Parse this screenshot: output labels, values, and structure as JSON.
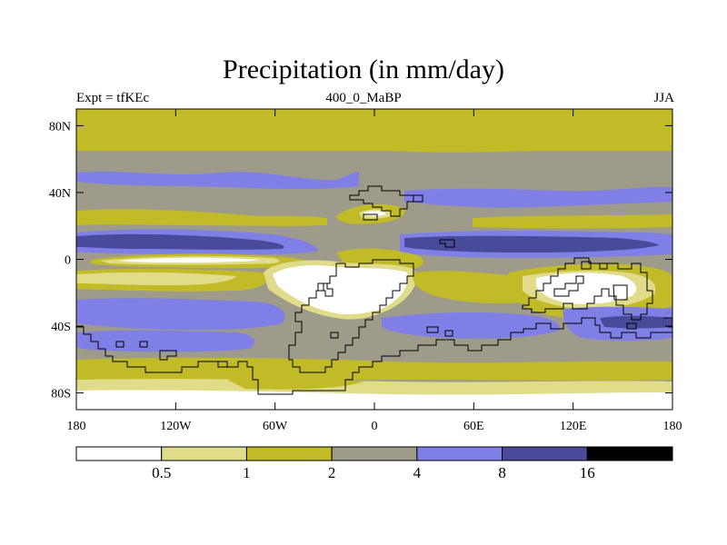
{
  "title": "Precipitation (in mm/day)",
  "left_label": "Expt = tfKEc",
  "center_label": "400_0_MaBP",
  "right_label": "JJA",
  "map": {
    "lon_range": [
      -180,
      180
    ],
    "lat_range": [
      -90,
      90
    ],
    "lon_ticks": [
      {
        "value": -180,
        "label": "180"
      },
      {
        "value": -120,
        "label": "120W"
      },
      {
        "value": -60,
        "label": "60W"
      },
      {
        "value": 0,
        "label": "0"
      },
      {
        "value": 60,
        "label": "60E"
      },
      {
        "value": 120,
        "label": "120E"
      },
      {
        "value": 180,
        "label": "180"
      }
    ],
    "lat_ticks": [
      {
        "value": 80,
        "label": "80N"
      },
      {
        "value": 40,
        "label": "40N"
      },
      {
        "value": 0,
        "label": "0"
      },
      {
        "value": -40,
        "label": "40S"
      },
      {
        "value": -80,
        "label": "80S"
      }
    ]
  },
  "colorbar": {
    "colors": [
      "#ffffff",
      "#e0dc8a",
      "#c2bb28",
      "#9e9b8a",
      "#7f7fe6",
      "#494a9a",
      "#000000"
    ],
    "labels": [
      "0.5",
      "1",
      "2",
      "4",
      "8",
      "16"
    ]
  }
}
